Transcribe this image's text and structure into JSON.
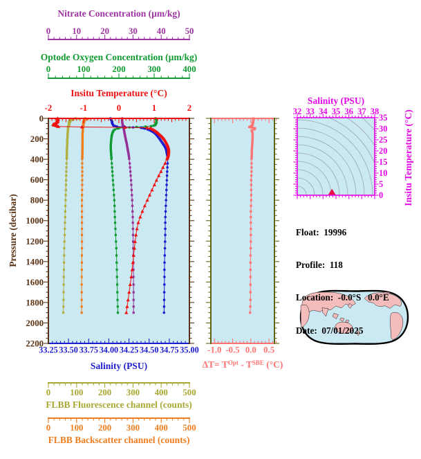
{
  "colors": {
    "nitrate": "#9c35a0",
    "oxygen": "#0f9b31",
    "temperature": "#f01010",
    "pressure": "#5a3214",
    "salinity": "#1d1dcf",
    "delta_t": "#ff7373",
    "panel_side": "#5f6613",
    "magenta": "#e606e6",
    "fluorescence": "#a8a832",
    "backscatter": "#ef7d1f",
    "plot_bg": "#cbe9f3",
    "contour": "#9aa5aa",
    "ts_marker": "#e8124a",
    "map_land": "#f5bcbc",
    "map_ocean": "#cbe9f3",
    "text": "#000000"
  },
  "axes": {
    "nitrate": {
      "title": "Nitrate Concentration (µm/kg)",
      "ticks": [
        "0",
        "10",
        "20",
        "30",
        "40",
        "50"
      ]
    },
    "oxygen": {
      "title": "Optode Oxygen Concentration (µm/kg)",
      "ticks": [
        "0",
        "100",
        "200",
        "300",
        "400"
      ]
    },
    "temperature": {
      "title": "Insitu Temperature (°C)",
      "ticks": [
        "-2",
        "-1",
        "0",
        "1",
        "2"
      ]
    },
    "pressure": {
      "title": "Pressure (decibar)",
      "ticks": [
        "0",
        "200",
        "400",
        "600",
        "800",
        "1000",
        "1200",
        "1400",
        "1600",
        "1800",
        "2000",
        "2200"
      ]
    },
    "salinity": {
      "title": "Salinity (PSU)",
      "ticks": [
        "33.25",
        "33.50",
        "33.75",
        "34.00",
        "34.25",
        "34.50",
        "34.75",
        "35.00"
      ]
    },
    "delta_t": {
      "label_prefix": "ΔT= T",
      "sup1": "Opt",
      "label_mid": " - T",
      "sup2": "SBE",
      "label_suffix": " (°C)",
      "ticks": [
        "-1.0",
        "-0.5",
        "0.0",
        "0.5"
      ]
    },
    "ts_salinity": {
      "title": "Salinity (PSU)",
      "ticks": [
        "32",
        "33",
        "34",
        "35",
        "36",
        "37",
        "38"
      ]
    },
    "ts_temperature": {
      "title": "Insitu Temperature (°C)",
      "ticks": [
        "0",
        "5",
        "10",
        "15",
        "20",
        "25",
        "30",
        "35"
      ]
    },
    "fluorescence": {
      "title": "FLBB Fluorescence channel (counts)",
      "ticks": [
        "0",
        "100",
        "200",
        "300",
        "400",
        "500"
      ]
    },
    "backscatter": {
      "title": "FLBB Backscatter channel (counts)",
      "ticks": [
        "0",
        "100",
        "200",
        "300",
        "400",
        "500"
      ]
    }
  },
  "info": {
    "lines": [
      "Float:  19996",
      "Profile:  118",
      "Location:  -0.0°S   0.0°E",
      "Date:  07/01/2025"
    ]
  },
  "chart_data": {
    "type": "line",
    "description": "Argo float depth profiles: six variables vs pressure, a temperature-difference panel, a T-S diagram with density contours, and a float location world map.",
    "pressure_range": [
      0,
      2200
    ],
    "series": [
      {
        "name": "FLBB Fluorescence channel",
        "units": "counts",
        "scale": "flbb",
        "range": [
          0,
          500
        ],
        "color": "#b0b040",
        "marker": "square",
        "points": [
          [
            0,
            96
          ],
          [
            4,
            108
          ],
          [
            8,
            90
          ],
          [
            12,
            80
          ],
          [
            16,
            86
          ],
          [
            20,
            75
          ],
          [
            26,
            80
          ],
          [
            32,
            73
          ],
          [
            40,
            76
          ],
          [
            50,
            72
          ],
          [
            60,
            74
          ],
          [
            75,
            71
          ],
          [
            90,
            70
          ],
          [
            120,
            69
          ],
          [
            160,
            68
          ],
          [
            220,
            67
          ],
          [
            300,
            66
          ],
          [
            400,
            65
          ],
          [
            550,
            63
          ],
          [
            700,
            62
          ],
          [
            900,
            60
          ],
          [
            1100,
            58
          ],
          [
            1300,
            56
          ],
          [
            1500,
            55
          ],
          [
            1700,
            54
          ],
          [
            1900,
            53
          ]
        ]
      },
      {
        "name": "FLBB Backscatter channel",
        "units": "counts",
        "scale": "flbb",
        "range": [
          0,
          500
        ],
        "color": "#ef7d1f",
        "marker": "square",
        "points": [
          [
            0,
            130
          ],
          [
            4,
            140
          ],
          [
            8,
            132
          ],
          [
            14,
            126
          ],
          [
            20,
            129
          ],
          [
            28,
            124
          ],
          [
            36,
            127
          ],
          [
            46,
            123
          ],
          [
            60,
            125
          ],
          [
            80,
            123
          ],
          [
            110,
            122
          ],
          [
            160,
            121
          ],
          [
            250,
            121
          ],
          [
            400,
            120
          ],
          [
            600,
            120
          ],
          [
            800,
            119
          ],
          [
            1000,
            119
          ],
          [
            1300,
            119
          ],
          [
            1600,
            118
          ],
          [
            1900,
            118
          ]
        ]
      },
      {
        "name": "Optode Oxygen Concentration",
        "units": "µm/kg",
        "scale": "oxygen",
        "range": [
          0,
          400
        ],
        "color": "#0f9b31",
        "marker": "square",
        "points": [
          [
            0,
            304
          ],
          [
            10,
            306
          ],
          [
            20,
            307
          ],
          [
            30,
            306
          ],
          [
            40,
            307
          ],
          [
            50,
            305
          ],
          [
            60,
            304
          ],
          [
            70,
            301
          ],
          [
            78,
            288
          ],
          [
            84,
            250
          ],
          [
            90,
            220
          ],
          [
            96,
            200
          ],
          [
            105,
            190
          ],
          [
            115,
            186
          ],
          [
            130,
            183
          ],
          [
            150,
            181
          ],
          [
            180,
            179
          ],
          [
            220,
            178
          ],
          [
            260,
            177
          ],
          [
            300,
            177
          ],
          [
            350,
            178
          ],
          [
            400,
            179
          ],
          [
            500,
            181
          ],
          [
            600,
            183
          ],
          [
            700,
            185
          ],
          [
            800,
            187
          ],
          [
            900,
            188
          ],
          [
            1000,
            189
          ],
          [
            1150,
            191
          ],
          [
            1300,
            193
          ],
          [
            1450,
            194
          ],
          [
            1600,
            195
          ],
          [
            1750,
            196
          ],
          [
            1900,
            197
          ]
        ]
      },
      {
        "name": "Nitrate Concentration",
        "units": "µm/kg",
        "scale": "nitrate",
        "range": [
          0,
          50
        ],
        "color": "#963195",
        "marker": "square",
        "points": [
          [
            0,
            26.2
          ],
          [
            20,
            26.1
          ],
          [
            40,
            26.2
          ],
          [
            60,
            26.3
          ],
          [
            75,
            26.5
          ],
          [
            85,
            27.2
          ],
          [
            95,
            26.6
          ],
          [
            110,
            26.8
          ],
          [
            130,
            26.9
          ],
          [
            160,
            27.1
          ],
          [
            200,
            27.4
          ],
          [
            250,
            27.8
          ],
          [
            300,
            28.1
          ],
          [
            360,
            28.5
          ],
          [
            430,
            28.8
          ],
          [
            500,
            29
          ],
          [
            600,
            29.3
          ],
          [
            700,
            29.5
          ],
          [
            800,
            29.7
          ],
          [
            950,
            29.9
          ],
          [
            1100,
            30
          ],
          [
            1300,
            30.1
          ],
          [
            1500,
            30.15
          ],
          [
            1700,
            30.2
          ],
          [
            1900,
            30.2
          ]
        ]
      },
      {
        "name": "Salinity",
        "units": "PSU",
        "scale": "salinity",
        "range": [
          33.25,
          35.0
        ],
        "color": "#1d1dcf",
        "marker": "circle",
        "points": [
          [
            0,
            34.02
          ],
          [
            15,
            34.03
          ],
          [
            30,
            34.04
          ],
          [
            45,
            34.04
          ],
          [
            60,
            34.05
          ],
          [
            72,
            34.06
          ],
          [
            80,
            34.1
          ],
          [
            86,
            34.25
          ],
          [
            92,
            34.4
          ],
          [
            100,
            34.45
          ],
          [
            110,
            34.49
          ],
          [
            125,
            34.53
          ],
          [
            145,
            34.57
          ],
          [
            170,
            34.6
          ],
          [
            200,
            34.63
          ],
          [
            235,
            34.66
          ],
          [
            270,
            34.69
          ],
          [
            300,
            34.71
          ],
          [
            340,
            34.72
          ],
          [
            380,
            34.73
          ],
          [
            430,
            34.73
          ],
          [
            500,
            34.725
          ],
          [
            600,
            34.72
          ],
          [
            700,
            34.715
          ],
          [
            800,
            34.71
          ],
          [
            900,
            34.705
          ],
          [
            1000,
            34.7
          ],
          [
            1150,
            34.7
          ],
          [
            1300,
            34.695
          ],
          [
            1450,
            34.69
          ],
          [
            1600,
            34.69
          ],
          [
            1750,
            34.687
          ],
          [
            1900,
            34.685
          ]
        ]
      },
      {
        "name": "Insitu Temperature",
        "units": "°C",
        "scale": "temperature",
        "range": [
          -2,
          2
        ],
        "color": "#f01010",
        "marker": "triangle",
        "points": [
          [
            0,
            -1.74
          ],
          [
            10,
            -1.72
          ],
          [
            20,
            -1.75
          ],
          [
            30,
            -1.73
          ],
          [
            40,
            -1.77
          ],
          [
            50,
            -1.8
          ],
          [
            58,
            -1.87
          ],
          [
            66,
            -1.85
          ],
          [
            72,
            -1.78
          ],
          [
            78,
            -1.73
          ],
          [
            82,
            -1.7
          ],
          [
            86,
            -0.4
          ],
          [
            90,
            0.75
          ],
          [
            95,
            0.88
          ],
          [
            105,
            0.95
          ],
          [
            120,
            1.02
          ],
          [
            140,
            1.1
          ],
          [
            160,
            1.16
          ],
          [
            185,
            1.24
          ],
          [
            210,
            1.3
          ],
          [
            240,
            1.35
          ],
          [
            270,
            1.39
          ],
          [
            300,
            1.41
          ],
          [
            330,
            1.41
          ],
          [
            360,
            1.4
          ],
          [
            400,
            1.36
          ],
          [
            440,
            1.31
          ],
          [
            480,
            1.25
          ],
          [
            530,
            1.18
          ],
          [
            580,
            1.1
          ],
          [
            640,
            1.02
          ],
          [
            700,
            0.94
          ],
          [
            760,
            0.86
          ],
          [
            820,
            0.78
          ],
          [
            880,
            0.7
          ],
          [
            950,
            0.62
          ],
          [
            1020,
            0.55
          ],
          [
            1100,
            0.5
          ],
          [
            1200,
            0.46
          ],
          [
            1300,
            0.43
          ],
          [
            1400,
            0.4
          ],
          [
            1500,
            0.37
          ],
          [
            1600,
            0.33
          ],
          [
            1700,
            0.29
          ],
          [
            1800,
            0.25
          ],
          [
            1900,
            0.21
          ]
        ]
      }
    ],
    "delta_t_panel": {
      "name": "ΔT = T(Opt) - T(SBE)",
      "units": "°C",
      "range": [
        -1.1,
        0.65
      ],
      "color": "#ff7373",
      "marker": "square",
      "points": [
        [
          0,
          0.07
        ],
        [
          20,
          0.07
        ],
        [
          40,
          0.06
        ],
        [
          60,
          0.05
        ],
        [
          75,
          0.02
        ],
        [
          85,
          -0.05
        ],
        [
          95,
          0.1
        ],
        [
          105,
          0.13
        ],
        [
          115,
          0.02
        ],
        [
          130,
          0.04
        ],
        [
          150,
          0.05
        ],
        [
          200,
          0.05
        ],
        [
          250,
          0.04
        ],
        [
          300,
          0.03
        ],
        [
          400,
          0.02
        ],
        [
          500,
          0.02
        ],
        [
          600,
          0.01
        ],
        [
          700,
          0.01
        ],
        [
          800,
          0.01
        ],
        [
          900,
          0
        ],
        [
          1000,
          0
        ],
        [
          1200,
          0
        ],
        [
          1400,
          -0.01
        ],
        [
          1600,
          -0.01
        ],
        [
          1800,
          -0.01
        ],
        [
          1900,
          -0.02
        ]
      ]
    },
    "ts_panel": {
      "salinity_range": [
        32,
        38
      ],
      "temperature_range": [
        0,
        35
      ],
      "marker": {
        "salinity": 34.69,
        "temperature": 0.7
      },
      "contours": "sigma-theta isopycnals (gray curves)"
    }
  }
}
